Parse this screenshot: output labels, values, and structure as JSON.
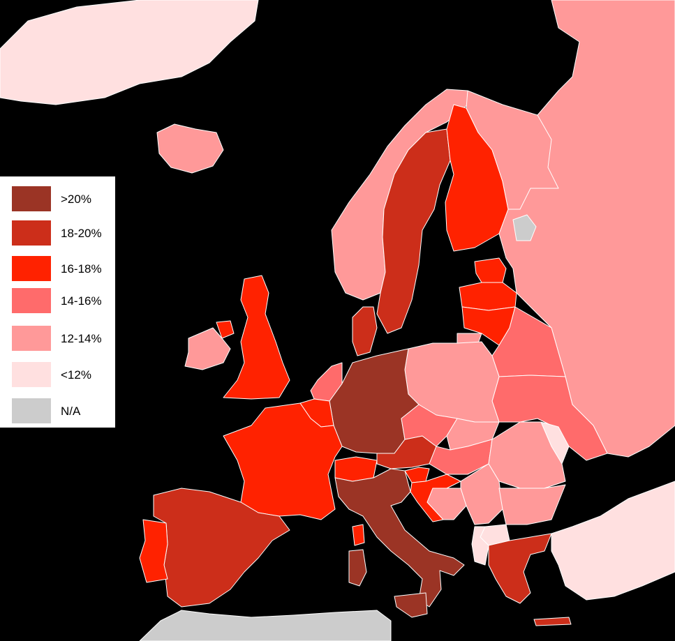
{
  "map": {
    "background": "#000000",
    "regions": [
      {
        "name": "greenland",
        "class": "lt12"
      },
      {
        "name": "iceland",
        "class": "c12_14"
      },
      {
        "name": "norway",
        "class": "c12_14"
      },
      {
        "name": "sweden",
        "class": "c18_20"
      },
      {
        "name": "finland",
        "class": "c16_18"
      },
      {
        "name": "russia",
        "class": "c12_14"
      },
      {
        "name": "estonia",
        "class": "c16_18"
      },
      {
        "name": "latvia",
        "class": "c16_18"
      },
      {
        "name": "lithuania",
        "class": "c16_18"
      },
      {
        "name": "belarus",
        "class": "c14_16"
      },
      {
        "name": "ukraine",
        "class": "c14_16"
      },
      {
        "name": "poland",
        "class": "c12_14"
      },
      {
        "name": "germany",
        "class": "gt20"
      },
      {
        "name": "denmark",
        "class": "c18_20"
      },
      {
        "name": "netherlands",
        "class": "c14_16"
      },
      {
        "name": "belgium",
        "class": "c16_18"
      },
      {
        "name": "united-kingdom",
        "class": "c16_18"
      },
      {
        "name": "ireland",
        "class": "c12_14"
      },
      {
        "name": "france",
        "class": "c16_18"
      },
      {
        "name": "spain",
        "class": "c18_20"
      },
      {
        "name": "portugal",
        "class": "c16_18"
      },
      {
        "name": "switzerland",
        "class": "c16_18"
      },
      {
        "name": "italy",
        "class": "gt20"
      },
      {
        "name": "austria",
        "class": "c18_20"
      },
      {
        "name": "czechia",
        "class": "c14_16"
      },
      {
        "name": "slovakia",
        "class": "c12_14"
      },
      {
        "name": "hungary",
        "class": "c14_16"
      },
      {
        "name": "slovenia",
        "class": "c16_18"
      },
      {
        "name": "croatia",
        "class": "c16_18"
      },
      {
        "name": "bosnia",
        "class": "c12_14"
      },
      {
        "name": "serbia",
        "class": "c12_14"
      },
      {
        "name": "romania",
        "class": "c12_14"
      },
      {
        "name": "moldova",
        "class": "lt12"
      },
      {
        "name": "bulgaria",
        "class": "c12_14"
      },
      {
        "name": "north-macedonia",
        "class": "lt12"
      },
      {
        "name": "albania",
        "class": "lt12"
      },
      {
        "name": "greece",
        "class": "c18_20"
      },
      {
        "name": "turkey",
        "class": "lt12"
      },
      {
        "name": "kaliningrad",
        "class": "c12_14"
      },
      {
        "name": "karelia-na",
        "class": "na"
      },
      {
        "name": "north-africa",
        "class": "na"
      }
    ]
  },
  "legend": {
    "items": [
      {
        "label": ">20%",
        "color": "#9b3425"
      },
      {
        "label": "18-20%",
        "color": "#cc2e1a"
      },
      {
        "label": "16-18%",
        "color": "#ff2200"
      },
      {
        "label": "14-16%",
        "color": "#ff6b6b"
      },
      {
        "label": "12-14%",
        "color": "#ff9999"
      },
      {
        "label": "<12%",
        "color": "#ffe0e0"
      },
      {
        "label": "N/A",
        "color": "#cccccc"
      }
    ]
  },
  "classes": {
    "gt20": "#9b3425",
    "c18_20": "#cc2e1a",
    "c16_18": "#ff2200",
    "c14_16": "#ff6b6b",
    "c12_14": "#ff9999",
    "lt12": "#ffe0e0",
    "na": "#cccccc"
  }
}
